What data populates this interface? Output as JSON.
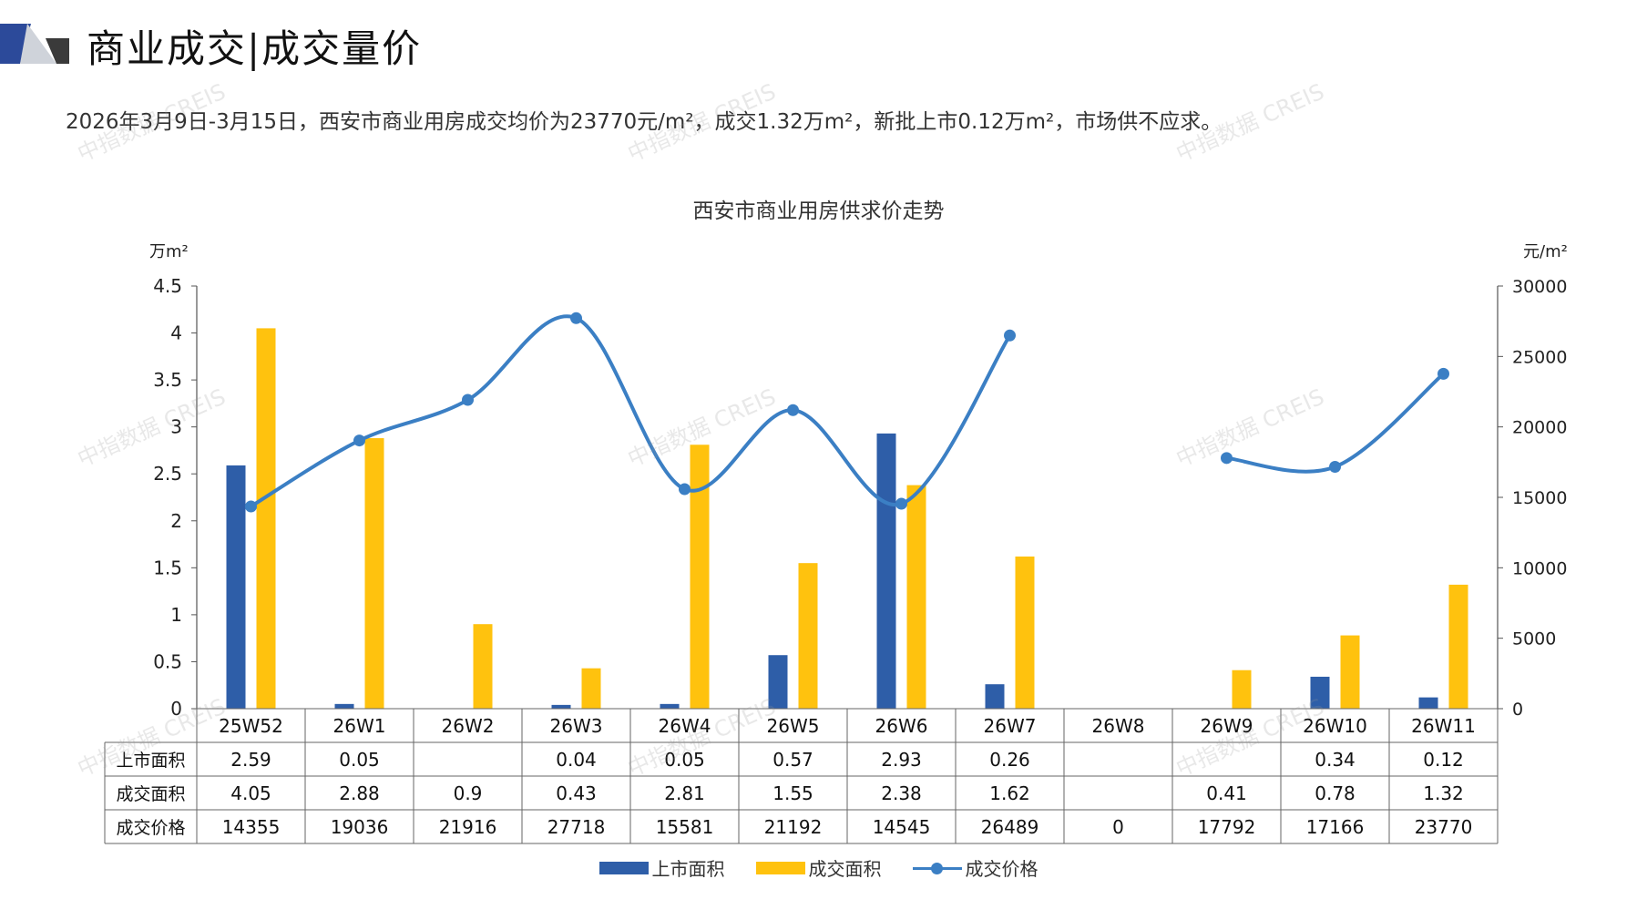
{
  "page": {
    "title": "商业成交|成交量价",
    "summary": "2026年3月9日-3月15日，西安市商业用房成交均价为23770元/m²，成交1.32万m²，新批上市0.12万m²，市场供不应求。",
    "watermark": "中指数据 CREIS"
  },
  "colors": {
    "listed": "#2e5ea8",
    "sold": "#ffc20e",
    "price": "#3b7fc4",
    "logo_dark": "#2c4a9a",
    "logo_light": "#cfd3da"
  },
  "chart_data": {
    "type": "bar",
    "title": "西安市商业用房供求价走势",
    "y_left_unit": "万m²",
    "y_right_unit": "元/m²",
    "y_left_ticks": [
      "0",
      "0.5",
      "1",
      "1.5",
      "2",
      "2.5",
      "3",
      "3.5",
      "4",
      "4.5"
    ],
    "y_right_ticks": [
      "0",
      "5000",
      "10000",
      "15000",
      "20000",
      "25000",
      "30000"
    ],
    "ylim_left": [
      0,
      4.5
    ],
    "ylim_right": [
      0,
      30000
    ],
    "categories": [
      "25W52",
      "26W1",
      "26W2",
      "26W3",
      "26W4",
      "26W5",
      "26W6",
      "26W7",
      "26W8",
      "26W9",
      "26W10",
      "26W11"
    ],
    "series": [
      {
        "name": "上市面积",
        "type": "bar",
        "axis": "left",
        "values": [
          2.59,
          0.05,
          null,
          0.04,
          0.05,
          0.57,
          2.93,
          0.26,
          null,
          null,
          0.34,
          0.12
        ],
        "labels": [
          "2.59",
          "0.05",
          "",
          "0.04",
          "0.05",
          "0.57",
          "2.93",
          "0.26",
          "",
          "",
          "0.34",
          "0.12"
        ]
      },
      {
        "name": "成交面积",
        "type": "bar",
        "axis": "left",
        "values": [
          4.05,
          2.88,
          0.9,
          0.43,
          2.81,
          1.55,
          2.38,
          1.62,
          null,
          0.41,
          0.78,
          1.32
        ],
        "labels": [
          "4.05",
          "2.88",
          "0.9",
          "0.43",
          "2.81",
          "1.55",
          "2.38",
          "1.62",
          "",
          "0.41",
          "0.78",
          "1.32"
        ]
      },
      {
        "name": "成交价格",
        "type": "line",
        "axis": "right",
        "values": [
          14355,
          19036,
          21916,
          27718,
          15581,
          21192,
          14545,
          26489,
          0,
          17792,
          17166,
          23770
        ],
        "labels": [
          "14355",
          "19036",
          "21916",
          "27718",
          "15581",
          "21192",
          "14545",
          "26489",
          "0",
          "17792",
          "17166",
          "23770"
        ]
      }
    ],
    "legend_position": "bottom",
    "grid": false
  }
}
